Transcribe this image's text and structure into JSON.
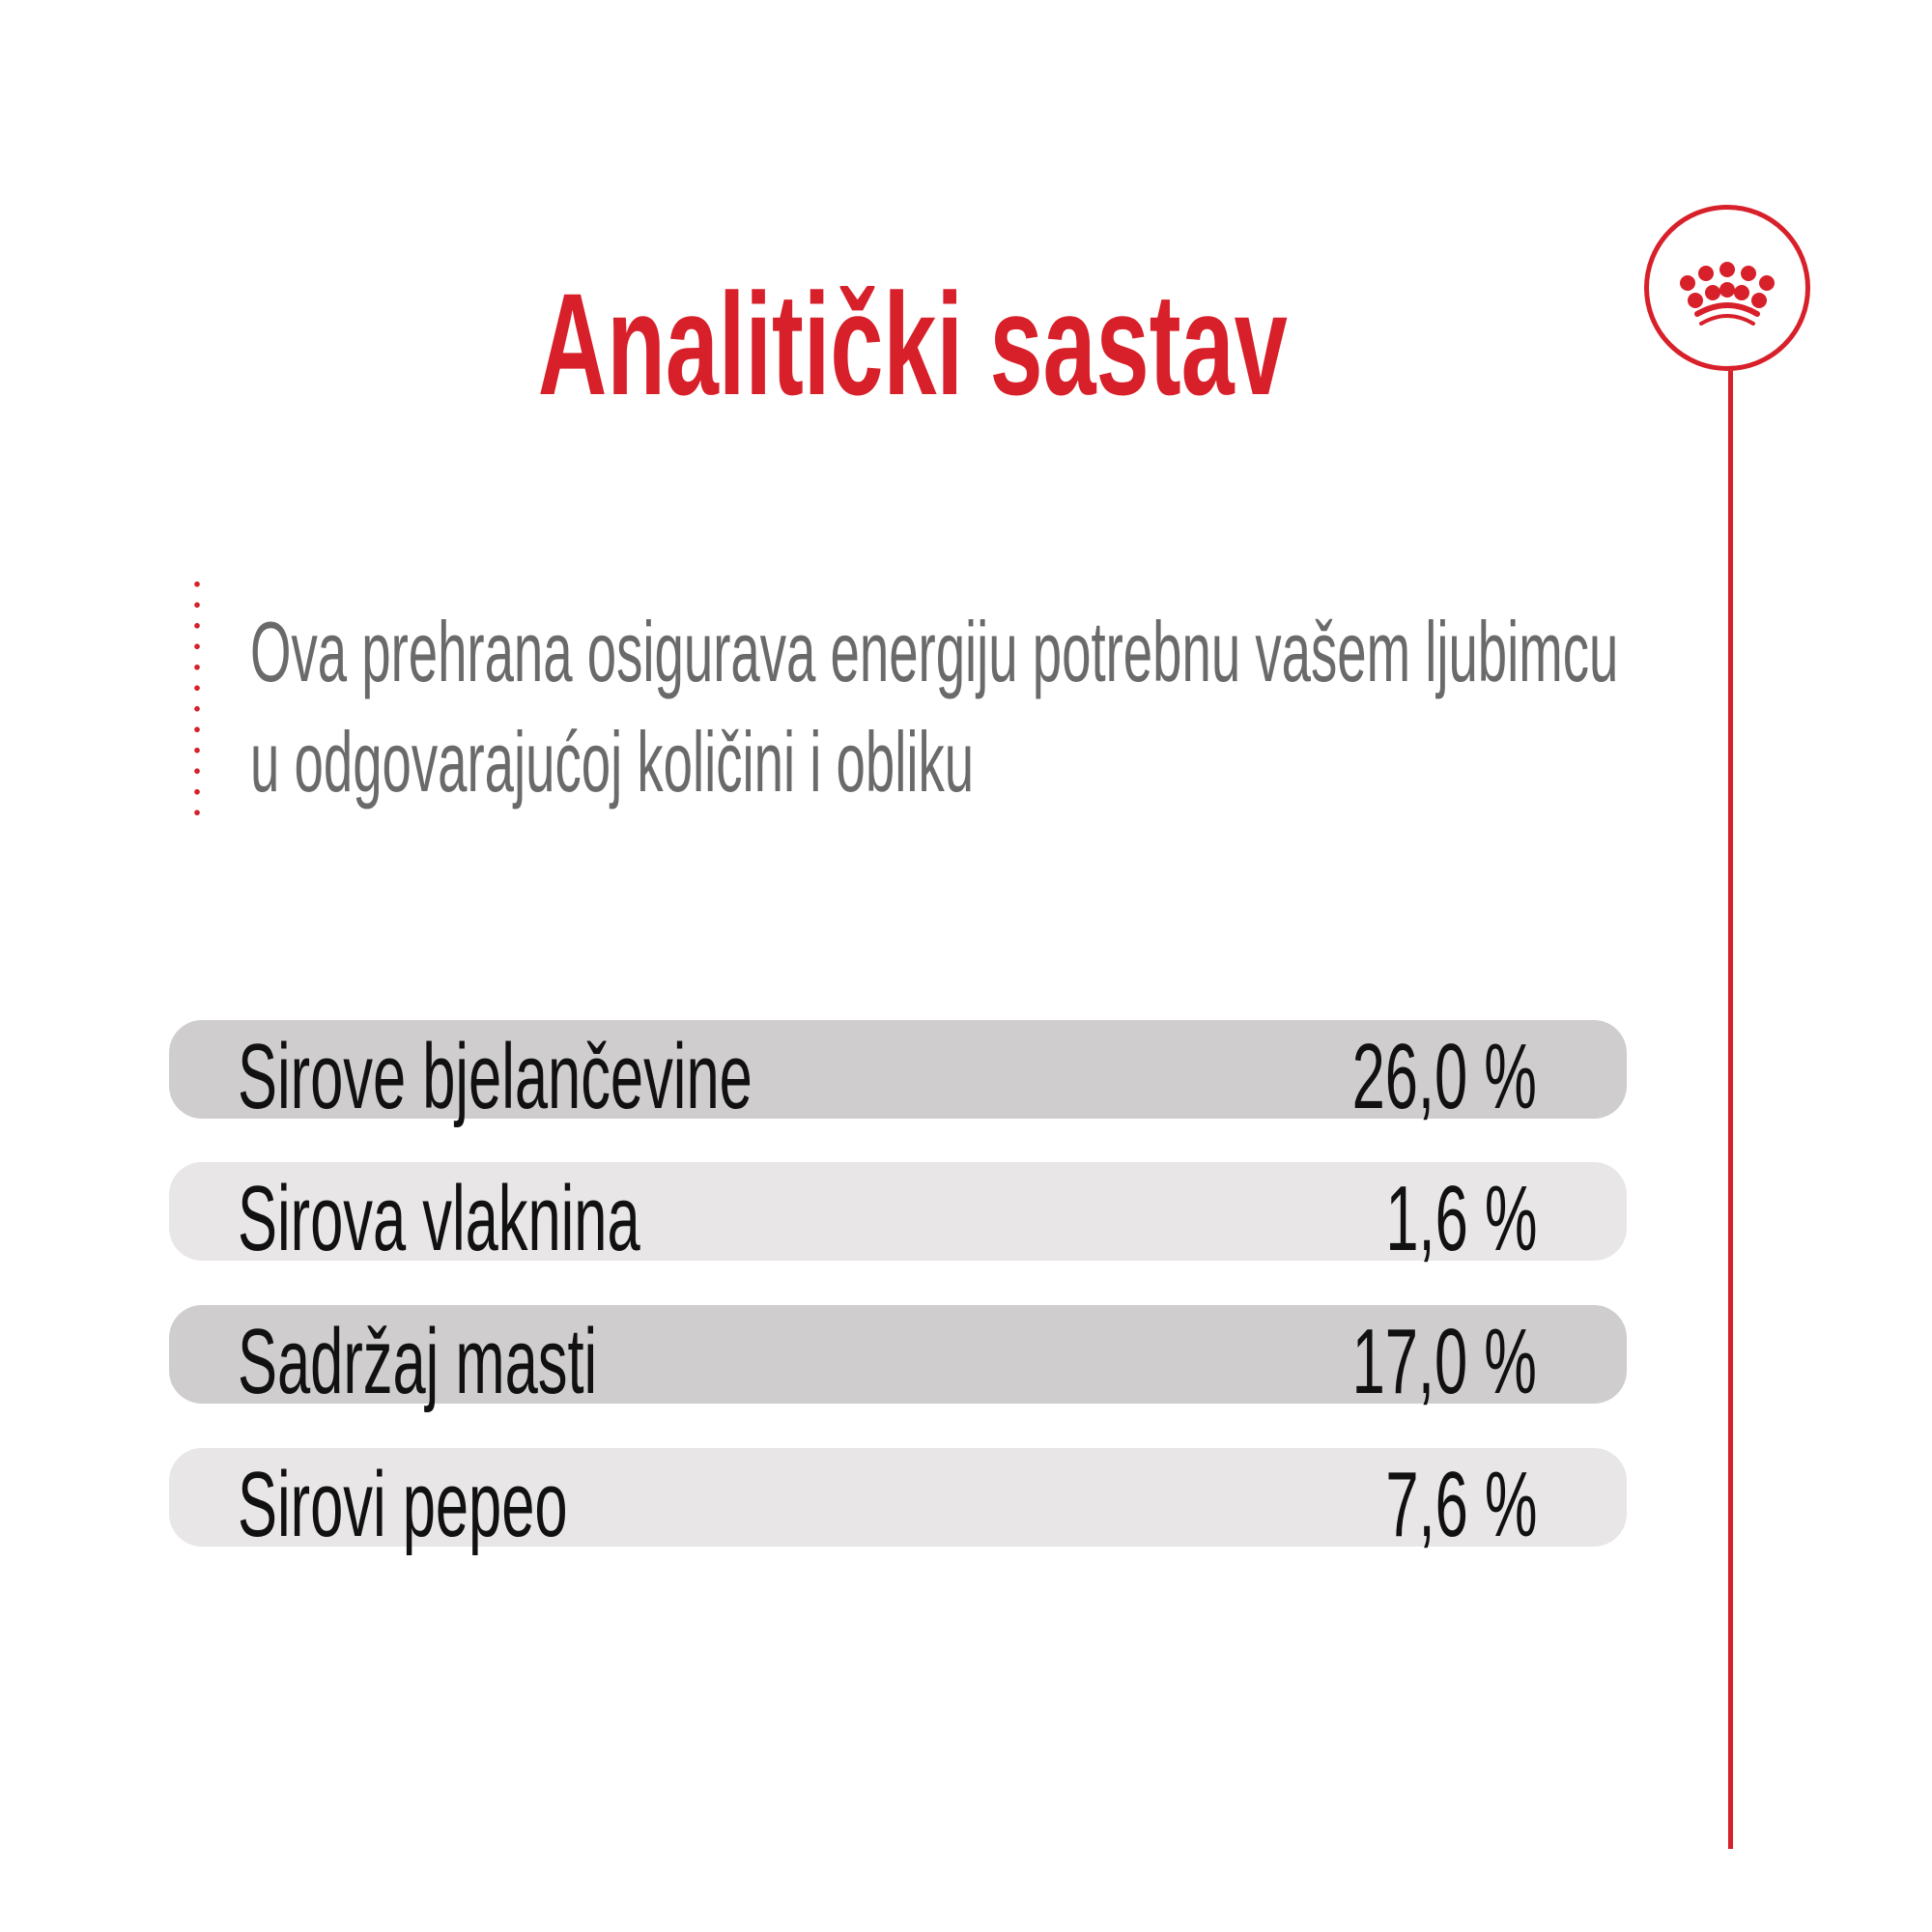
{
  "title": "Analitički sastav",
  "description": [
    "Ova prehrana osigurava energiju potrebnu vašem ljubimcu",
    "u odgovarajućoj količini i obliku"
  ],
  "brand_color": "#d7202a",
  "logo_icon": "crown-icon",
  "rows": [
    {
      "label": "Sirove bjelančevine",
      "value": "26,0 %"
    },
    {
      "label": "Sirova vlaknina",
      "value": "1,6 %"
    },
    {
      "label": "Sadržaj masti",
      "value": "17,0 %"
    },
    {
      "label": "Sirovi pepeo",
      "value": "7,6 %"
    }
  ]
}
